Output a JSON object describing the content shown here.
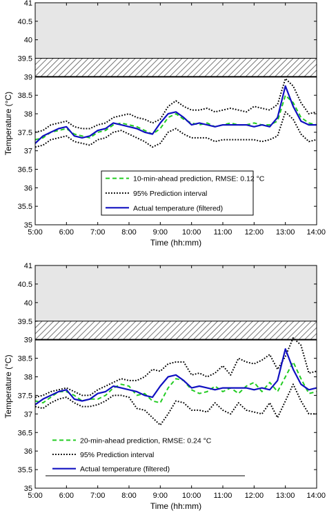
{
  "chart_data": [
    {
      "type": "line",
      "xlabel": "Time (hh:mm)",
      "ylabel": "Temperature (°C)",
      "xlim": [
        5,
        14
      ],
      "ylim": [
        35,
        41
      ],
      "xticks": [
        "5:00",
        "6:00",
        "7:00",
        "8:00",
        "9:00",
        "10:00",
        "11:00",
        "12:00",
        "13:00",
        "14:00"
      ],
      "yticks": [
        "35",
        "35.5",
        "36",
        "36.5",
        "37",
        "37.5",
        "38",
        "38.5",
        "39",
        "39.5",
        "40",
        "40.5",
        "41"
      ],
      "bands": {
        "hatched": [
          39,
          39.5
        ],
        "shaded": [
          39.5,
          41
        ],
        "threshold": 39
      },
      "legend_position": "bottom-right",
      "series": [
        {
          "name": "10-min-ahead prediction, RMSE: 0.12 °C",
          "style": "dashed",
          "color": "#22cc22",
          "x": [
            5.0,
            5.25,
            5.5,
            5.75,
            6.0,
            6.25,
            6.5,
            6.75,
            7.0,
            7.25,
            7.5,
            7.75,
            8.0,
            8.25,
            8.5,
            8.75,
            9.0,
            9.25,
            9.5,
            9.75,
            10.0,
            10.25,
            10.5,
            10.75,
            11.0,
            11.25,
            11.5,
            11.75,
            12.0,
            12.25,
            12.5,
            12.75,
            13.0,
            13.25,
            13.5,
            13.75,
            14.0
          ],
          "y": [
            37.3,
            37.35,
            37.5,
            37.55,
            37.6,
            37.45,
            37.4,
            37.35,
            37.5,
            37.55,
            37.7,
            37.75,
            37.7,
            37.65,
            37.55,
            37.45,
            37.6,
            37.9,
            38.0,
            37.85,
            37.75,
            37.7,
            37.75,
            37.65,
            37.7,
            37.75,
            37.7,
            37.7,
            37.75,
            37.7,
            37.7,
            37.8,
            38.5,
            38.3,
            37.9,
            37.75,
            37.7
          ]
        },
        {
          "name": "95% Prediction interval",
          "style": "dotted",
          "color": "#000000",
          "x": [
            5.0,
            5.25,
            5.5,
            5.75,
            6.0,
            6.25,
            6.5,
            6.75,
            7.0,
            7.25,
            7.5,
            7.75,
            8.0,
            8.25,
            8.5,
            8.75,
            9.0,
            9.25,
            9.5,
            9.75,
            10.0,
            10.25,
            10.5,
            10.75,
            11.0,
            11.25,
            11.5,
            11.75,
            12.0,
            12.25,
            12.5,
            12.75,
            13.0,
            13.25,
            13.5,
            13.75,
            14.0
          ],
          "y": [
            37.5,
            37.55,
            37.7,
            37.75,
            37.8,
            37.65,
            37.6,
            37.6,
            37.7,
            37.75,
            37.9,
            37.95,
            38.0,
            37.9,
            37.85,
            37.75,
            37.85,
            38.2,
            38.35,
            38.2,
            38.1,
            38.1,
            38.15,
            38.05,
            38.1,
            38.15,
            38.1,
            38.05,
            38.2,
            38.15,
            38.1,
            38.25,
            38.95,
            38.75,
            38.3,
            38.0,
            38.05
          ]
        },
        {
          "name": "",
          "style": "dotted",
          "color": "#000000",
          "x": [
            5.0,
            5.25,
            5.5,
            5.75,
            6.0,
            6.25,
            6.5,
            6.75,
            7.0,
            7.25,
            7.5,
            7.75,
            8.0,
            8.25,
            8.5,
            8.75,
            9.0,
            9.25,
            9.5,
            9.75,
            10.0,
            10.25,
            10.5,
            10.75,
            11.0,
            11.25,
            11.5,
            11.75,
            12.0,
            12.25,
            12.5,
            12.75,
            13.0,
            13.25,
            13.5,
            13.75,
            14.0
          ],
          "y": [
            37.1,
            37.15,
            37.3,
            37.35,
            37.4,
            37.25,
            37.2,
            37.15,
            37.3,
            37.35,
            37.5,
            37.55,
            37.45,
            37.35,
            37.25,
            37.1,
            37.2,
            37.5,
            37.6,
            37.45,
            37.35,
            37.35,
            37.35,
            37.25,
            37.3,
            37.3,
            37.3,
            37.3,
            37.3,
            37.25,
            37.3,
            37.4,
            38.05,
            37.85,
            37.45,
            37.25,
            37.3
          ]
        },
        {
          "name": "Actual temperature (filtered)",
          "style": "solid",
          "color": "#1010c0",
          "x": [
            5.0,
            5.25,
            5.5,
            5.75,
            6.0,
            6.25,
            6.5,
            6.75,
            7.0,
            7.25,
            7.5,
            7.75,
            8.0,
            8.25,
            8.5,
            8.75,
            9.0,
            9.25,
            9.5,
            9.75,
            10.0,
            10.25,
            10.5,
            10.75,
            11.0,
            11.25,
            11.5,
            11.75,
            12.0,
            12.25,
            12.5,
            12.75,
            13.0,
            13.25,
            13.5,
            13.75,
            14.0
          ],
          "y": [
            37.2,
            37.4,
            37.5,
            37.6,
            37.65,
            37.4,
            37.35,
            37.4,
            37.55,
            37.6,
            37.75,
            37.7,
            37.65,
            37.6,
            37.5,
            37.45,
            37.75,
            38.0,
            38.05,
            37.9,
            37.7,
            37.75,
            37.7,
            37.65,
            37.7,
            37.7,
            37.7,
            37.7,
            37.65,
            37.7,
            37.65,
            37.9,
            38.75,
            38.2,
            37.8,
            37.7,
            37.7
          ]
        }
      ]
    },
    {
      "type": "line",
      "xlabel": "Time (hh:mm)",
      "ylabel": "Temperature (°C)",
      "xlim": [
        5,
        14
      ],
      "ylim": [
        35,
        41
      ],
      "xticks": [
        "5:00",
        "6:00",
        "7:00",
        "8:00",
        "9:00",
        "10:00",
        "11:00",
        "12:00",
        "13:00",
        "14:00"
      ],
      "yticks": [
        "35",
        "35.5",
        "36",
        "36.5",
        "37",
        "37.5",
        "38",
        "38.5",
        "39",
        "39.5",
        "40",
        "40.5",
        "41"
      ],
      "bands": {
        "hatched": [
          39,
          39.5
        ],
        "shaded": [
          39.5,
          41
        ],
        "threshold": 39
      },
      "legend_position": "bottom-left",
      "series": [
        {
          "name": "20-min-ahead prediction, RMSE: 0.24 °C",
          "style": "dashed",
          "color": "#22cc22",
          "x": [
            5.0,
            5.25,
            5.5,
            5.75,
            6.0,
            6.25,
            6.5,
            6.75,
            7.0,
            7.25,
            7.5,
            7.75,
            8.0,
            8.25,
            8.5,
            8.75,
            9.0,
            9.25,
            9.5,
            9.75,
            10.0,
            10.25,
            10.5,
            10.75,
            11.0,
            11.25,
            11.5,
            11.75,
            12.0,
            12.25,
            12.5,
            12.75,
            13.0,
            13.25,
            13.5,
            13.75,
            14.0
          ],
          "y": [
            37.35,
            37.3,
            37.45,
            37.6,
            37.6,
            37.5,
            37.35,
            37.4,
            37.4,
            37.5,
            37.7,
            37.8,
            37.75,
            37.5,
            37.55,
            37.35,
            37.3,
            37.7,
            37.95,
            37.9,
            37.65,
            37.55,
            37.6,
            37.75,
            37.6,
            37.7,
            37.55,
            37.75,
            37.85,
            37.6,
            37.85,
            37.6,
            38.0,
            38.4,
            37.95,
            37.55,
            37.6
          ]
        },
        {
          "name": "95% Prediction interval",
          "style": "dotted",
          "color": "#000000",
          "x": [
            5.0,
            5.25,
            5.5,
            5.75,
            6.0,
            6.25,
            6.5,
            6.75,
            7.0,
            7.25,
            7.5,
            7.75,
            8.0,
            8.25,
            8.5,
            8.75,
            9.0,
            9.25,
            9.5,
            9.75,
            10.0,
            10.25,
            10.5,
            10.75,
            11.0,
            11.25,
            11.5,
            11.75,
            12.0,
            12.25,
            12.5,
            12.75,
            13.0,
            13.25,
            13.5,
            13.75,
            14.0
          ],
          "y": [
            37.45,
            37.5,
            37.6,
            37.65,
            37.7,
            37.6,
            37.5,
            37.5,
            37.65,
            37.75,
            37.85,
            37.95,
            37.9,
            37.9,
            38.0,
            38.2,
            38.15,
            38.35,
            38.4,
            38.4,
            38.05,
            38.1,
            38.0,
            38.1,
            38.3,
            38.05,
            38.5,
            38.4,
            38.35,
            38.45,
            38.6,
            38.2,
            38.55,
            39.05,
            38.85,
            38.1,
            38.15
          ]
        },
        {
          "name": "",
          "style": "dotted",
          "color": "#000000",
          "x": [
            5.0,
            5.25,
            5.5,
            5.75,
            6.0,
            6.25,
            6.5,
            6.75,
            7.0,
            7.25,
            7.5,
            7.75,
            8.0,
            8.25,
            8.5,
            8.75,
            9.0,
            9.25,
            9.5,
            9.75,
            10.0,
            10.25,
            10.5,
            10.75,
            11.0,
            11.25,
            11.5,
            11.75,
            12.0,
            12.25,
            12.5,
            12.75,
            13.0,
            13.25,
            13.5,
            13.75,
            14.0
          ],
          "y": [
            37.2,
            37.15,
            37.3,
            37.4,
            37.45,
            37.3,
            37.2,
            37.2,
            37.25,
            37.35,
            37.5,
            37.5,
            37.45,
            37.15,
            37.1,
            36.9,
            36.7,
            37.0,
            37.35,
            37.3,
            37.1,
            37.1,
            37.05,
            37.3,
            37.1,
            37.0,
            37.3,
            37.1,
            37.05,
            37.0,
            37.3,
            36.9,
            37.35,
            37.8,
            37.35,
            37.0,
            37.0
          ]
        },
        {
          "name": "Actual temperature (filtered)",
          "style": "solid",
          "color": "#1010c0",
          "x": [
            5.0,
            5.25,
            5.5,
            5.75,
            6.0,
            6.25,
            6.5,
            6.75,
            7.0,
            7.25,
            7.5,
            7.75,
            8.0,
            8.25,
            8.5,
            8.75,
            9.0,
            9.25,
            9.5,
            9.75,
            10.0,
            10.25,
            10.5,
            10.75,
            11.0,
            11.25,
            11.5,
            11.75,
            12.0,
            12.25,
            12.5,
            12.75,
            13.0,
            13.25,
            13.5,
            13.75,
            14.0
          ],
          "y": [
            37.25,
            37.4,
            37.5,
            37.6,
            37.65,
            37.4,
            37.35,
            37.4,
            37.55,
            37.6,
            37.75,
            37.7,
            37.65,
            37.6,
            37.5,
            37.45,
            37.75,
            38.0,
            38.05,
            37.9,
            37.7,
            37.75,
            37.7,
            37.65,
            37.7,
            37.7,
            37.7,
            37.7,
            37.65,
            37.7,
            37.65,
            37.9,
            38.75,
            38.2,
            37.8,
            37.65,
            37.7
          ]
        }
      ]
    }
  ]
}
